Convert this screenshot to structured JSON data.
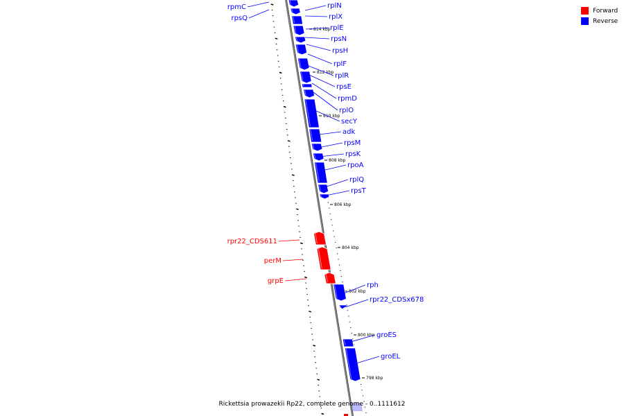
{
  "legend": [
    {
      "label": "Forward",
      "color": "#ff0000"
    },
    {
      "label": "Reverse",
      "color": "#0000ff"
    }
  ],
  "caption": "Rickettsia prowazekii Rp22, complete genome - 0..1111612",
  "colors": {
    "forward": "#ff0000",
    "reverse": "#0000ff",
    "backbone": "#808080"
  },
  "genes": [
    {
      "name": "rpmC",
      "strand": "reverse"
    },
    {
      "name": "rpsQ",
      "strand": "reverse"
    },
    {
      "name": "rplN",
      "strand": "reverse"
    },
    {
      "name": "rplX",
      "strand": "reverse"
    },
    {
      "name": "rplE",
      "strand": "reverse"
    },
    {
      "name": "rpsN",
      "strand": "reverse"
    },
    {
      "name": "rpsH",
      "strand": "reverse"
    },
    {
      "name": "rplF",
      "strand": "reverse"
    },
    {
      "name": "rplR",
      "strand": "reverse"
    },
    {
      "name": "rpsE",
      "strand": "reverse"
    },
    {
      "name": "rpmD",
      "strand": "reverse"
    },
    {
      "name": "rplO",
      "strand": "reverse"
    },
    {
      "name": "secY",
      "strand": "reverse"
    },
    {
      "name": "adk",
      "strand": "reverse"
    },
    {
      "name": "rpsM",
      "strand": "reverse"
    },
    {
      "name": "rpsK",
      "strand": "reverse"
    },
    {
      "name": "rpoA",
      "strand": "reverse"
    },
    {
      "name": "rplQ",
      "strand": "reverse"
    },
    {
      "name": "rpsT",
      "strand": "reverse"
    },
    {
      "name": "rpr22_CDS611",
      "strand": "forward"
    },
    {
      "name": "perM",
      "strand": "forward"
    },
    {
      "name": "grpE",
      "strand": "forward"
    },
    {
      "name": "rph",
      "strand": "reverse"
    },
    {
      "name": "rpr22_CDSx678",
      "strand": "reverse"
    },
    {
      "name": "groES",
      "strand": "reverse"
    },
    {
      "name": "groEL",
      "strand": "reverse"
    }
  ],
  "ticks": [
    "814 kbp",
    "812 kbp",
    "810 kbp",
    "808 kbp",
    "806 kbp",
    "804 kbp",
    "802 kbp",
    "800 kbp",
    "798 kbp"
  ]
}
